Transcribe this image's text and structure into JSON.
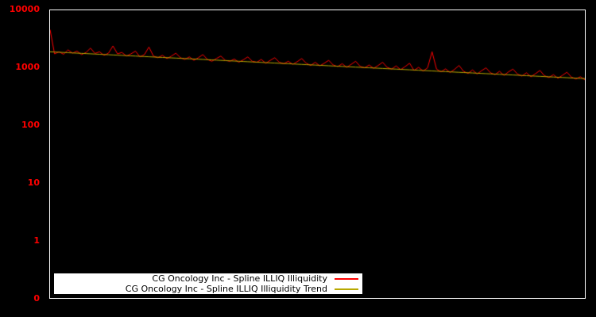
{
  "chart_data": {
    "type": "line",
    "title": "",
    "background": "#000000",
    "frame_color": "#ffffff",
    "y_axis": {
      "scale": "log",
      "top_value": 10000,
      "decades": 5,
      "tick_labels": [
        "10000",
        "1000",
        "100",
        "10",
        "1",
        "0"
      ],
      "tick_color": "#ff0000"
    },
    "x_axis": {
      "tick_labels": []
    },
    "legend": {
      "position": "bottom-center",
      "background": "#ffffff",
      "text_color": "#000000"
    },
    "series": [
      {
        "name": "CG Oncology Inc - Spline ILLIQ Illiquidity",
        "color": "#ff0000",
        "values": [
          4600,
          1750,
          1900,
          1720,
          2050,
          1800,
          1950,
          1700,
          1850,
          2200,
          1780,
          1900,
          1650,
          1800,
          2400,
          1750,
          1850,
          1600,
          1750,
          1950,
          1550,
          1700,
          2300,
          1600,
          1500,
          1650,
          1450,
          1600,
          1800,
          1500,
          1400,
          1550,
          1350,
          1500,
          1700,
          1400,
          1300,
          1450,
          1600,
          1350,
          1300,
          1420,
          1250,
          1380,
          1550,
          1300,
          1250,
          1400,
          1200,
          1350,
          1500,
          1250,
          1180,
          1300,
          1150,
          1280,
          1450,
          1200,
          1100,
          1250,
          1080,
          1200,
          1350,
          1120,
          1050,
          1180,
          1020,
          1150,
          1300,
          1060,
          1000,
          1120,
          980,
          1100,
          1250,
          1020,
          950,
          1080,
          930,
          1050,
          1200,
          900,
          1020,
          880,
          1000,
          1900,
          950,
          850,
          960,
          830,
          940,
          1100,
          870,
          800,
          920,
          780,
          890,
          1000,
          820,
          760,
          870,
          740,
          850,
          950,
          780,
          720,
          820,
          700,
          790,
          900,
          730,
          680,
          760,
          660,
          740,
          840,
          690,
          640,
          700,
          620
        ]
      },
      {
        "name": "CG Oncology Inc - Spline ILLIQ Illiquidity Trend",
        "color": "#b8a800",
        "trend": {
          "start": 1900,
          "end": 650,
          "interpolation": "log-linear"
        }
      }
    ]
  }
}
